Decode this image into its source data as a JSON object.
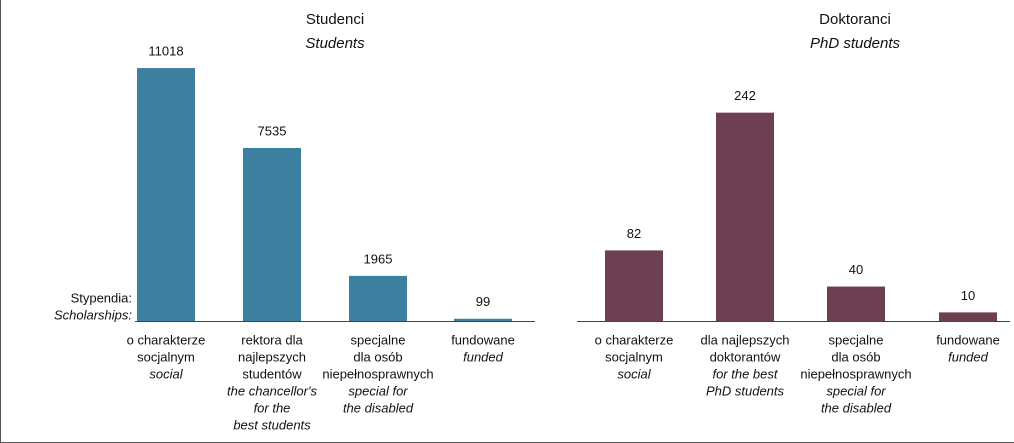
{
  "chart_data": [
    {
      "type": "bar",
      "title": "Studenci",
      "subtitle": "Students",
      "category_label": {
        "pl": "Stypendia:",
        "en": "Scholarships:"
      },
      "categories": [
        {
          "pl": [
            "o charakterze",
            "socjalnym"
          ],
          "en": [
            "social"
          ]
        },
        {
          "pl": [
            "rektora dla",
            "najlepszych",
            "studentów"
          ],
          "en": [
            "the chancellor's",
            "for the",
            "best students"
          ]
        },
        {
          "pl": [
            "specjalne",
            "dla osób",
            "niepełnosprawnych"
          ],
          "en": [
            "special for",
            "the disabled"
          ]
        },
        {
          "pl": [
            "fundowane"
          ],
          "en": [
            "funded"
          ]
        }
      ],
      "values": [
        11018,
        7535,
        1965,
        99
      ],
      "color": "#3d7f9f",
      "ylim": [
        0,
        12000
      ]
    },
    {
      "type": "bar",
      "title": "Doktoranci",
      "subtitle": "PhD students",
      "categories": [
        {
          "pl": [
            "o charakterze",
            "socjalnym"
          ],
          "en": [
            "social"
          ]
        },
        {
          "pl": [
            "dla najlepszych",
            "doktorantów"
          ],
          "en": [
            "for the best",
            "PhD students"
          ]
        },
        {
          "pl": [
            "specjalne",
            "dla osób",
            "niepełnosprawnych"
          ],
          "en": [
            "special for",
            "the disabled"
          ]
        },
        {
          "pl": [
            "fundowane"
          ],
          "en": [
            "funded"
          ]
        }
      ],
      "values": [
        82,
        242,
        40,
        10
      ],
      "color": "#6c3f53",
      "ylim": [
        0,
        320
      ]
    }
  ]
}
